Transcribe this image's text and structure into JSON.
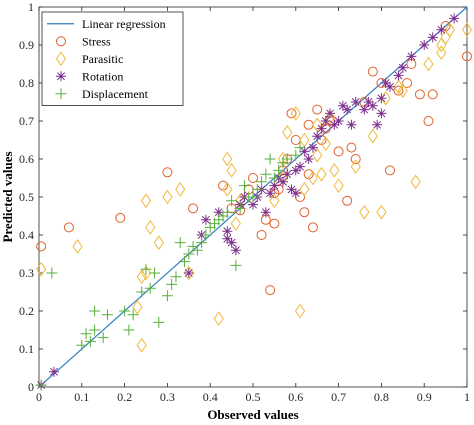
{
  "chart_data": {
    "type": "scatter",
    "xlabel": "Observed values",
    "ylabel": "Predicted values",
    "xlim": [
      0,
      1
    ],
    "ylim": [
      0,
      1
    ],
    "xticks": [
      "0",
      "0.1",
      "0.2",
      "0.3",
      "0.4",
      "0.5",
      "0.6",
      "0.7",
      "0.8",
      "0.9",
      "1"
    ],
    "yticks": [
      "0",
      "0.1",
      "0.2",
      "0.3",
      "0.4",
      "0.5",
      "0.6",
      "0.7",
      "0.8",
      "0.9",
      "1"
    ],
    "grid": false,
    "legend_position": "top-left",
    "line": {
      "name": "Linear regression",
      "color": "#2f7fc1",
      "points": [
        [
          0,
          0
        ],
        [
          1,
          1
        ]
      ]
    },
    "series": [
      {
        "name": "Stress",
        "marker": "circle",
        "color": "#e0602a",
        "points": [
          [
            0.005,
            0.37
          ],
          [
            0.07,
            0.42
          ],
          [
            0.19,
            0.445
          ],
          [
            0.3,
            0.565
          ],
          [
            0.36,
            0.47
          ],
          [
            0.43,
            0.53
          ],
          [
            0.45,
            0.47
          ],
          [
            0.47,
            0.465
          ],
          [
            0.49,
            0.52
          ],
          [
            0.5,
            0.55
          ],
          [
            0.52,
            0.4
          ],
          [
            0.53,
            0.44
          ],
          [
            0.54,
            0.255
          ],
          [
            0.55,
            0.51
          ],
          [
            0.55,
            0.43
          ],
          [
            0.56,
            0.52
          ],
          [
            0.57,
            0.57
          ],
          [
            0.58,
            0.6
          ],
          [
            0.59,
            0.72
          ],
          [
            0.6,
            0.65
          ],
          [
            0.61,
            0.5
          ],
          [
            0.62,
            0.46
          ],
          [
            0.63,
            0.56
          ],
          [
            0.63,
            0.69
          ],
          [
            0.64,
            0.42
          ],
          [
            0.65,
            0.73
          ],
          [
            0.66,
            0.65
          ],
          [
            0.67,
            0.68
          ],
          [
            0.68,
            0.7
          ],
          [
            0.7,
            0.62
          ],
          [
            0.72,
            0.49
          ],
          [
            0.73,
            0.63
          ],
          [
            0.74,
            0.6
          ],
          [
            0.76,
            0.75
          ],
          [
            0.78,
            0.83
          ],
          [
            0.8,
            0.8
          ],
          [
            0.82,
            0.57
          ],
          [
            0.84,
            0.78
          ],
          [
            0.86,
            0.8
          ],
          [
            0.87,
            0.85
          ],
          [
            0.89,
            0.77
          ],
          [
            0.91,
            0.7
          ],
          [
            0.92,
            0.77
          ],
          [
            0.95,
            0.95
          ],
          [
            1.0,
            0.87
          ]
        ]
      },
      {
        "name": "Parasitic",
        "marker": "diamond",
        "color": "#f0b93a",
        "points": [
          [
            0.005,
            0.31
          ],
          [
            0.09,
            0.37
          ],
          [
            0.23,
            0.21
          ],
          [
            0.24,
            0.29
          ],
          [
            0.24,
            0.11
          ],
          [
            0.25,
            0.3
          ],
          [
            0.25,
            0.49
          ],
          [
            0.26,
            0.42
          ],
          [
            0.28,
            0.38
          ],
          [
            0.3,
            0.5
          ],
          [
            0.33,
            0.52
          ],
          [
            0.35,
            0.3
          ],
          [
            0.42,
            0.18
          ],
          [
            0.44,
            0.52
          ],
          [
            0.44,
            0.6
          ],
          [
            0.45,
            0.57
          ],
          [
            0.46,
            0.43
          ],
          [
            0.47,
            0.49
          ],
          [
            0.55,
            0.49
          ],
          [
            0.57,
            0.55
          ],
          [
            0.57,
            0.6
          ],
          [
            0.58,
            0.67
          ],
          [
            0.6,
            0.72
          ],
          [
            0.61,
            0.2
          ],
          [
            0.62,
            0.65
          ],
          [
            0.62,
            0.52
          ],
          [
            0.64,
            0.55
          ],
          [
            0.65,
            0.61
          ],
          [
            0.65,
            0.69
          ],
          [
            0.66,
            0.56
          ],
          [
            0.67,
            0.64
          ],
          [
            0.68,
            0.71
          ],
          [
            0.69,
            0.57
          ],
          [
            0.7,
            0.53
          ],
          [
            0.74,
            0.58
          ],
          [
            0.76,
            0.46
          ],
          [
            0.78,
            0.66
          ],
          [
            0.8,
            0.46
          ],
          [
            0.81,
            0.76
          ],
          [
            0.84,
            0.79
          ],
          [
            0.85,
            0.78
          ],
          [
            0.88,
            0.54
          ],
          [
            0.91,
            0.85
          ],
          [
            0.94,
            0.88
          ],
          [
            0.94,
            0.9
          ],
          [
            0.95,
            0.92
          ],
          [
            0.96,
            0.94
          ],
          [
            1.0,
            0.94
          ]
        ]
      },
      {
        "name": "Rotation",
        "marker": "star",
        "color": "#7e2f8e",
        "points": [
          [
            0.005,
            0.005
          ],
          [
            0.035,
            0.04
          ],
          [
            0.35,
            0.3
          ],
          [
            0.38,
            0.4
          ],
          [
            0.39,
            0.44
          ],
          [
            0.42,
            0.46
          ],
          [
            0.44,
            0.39
          ],
          [
            0.44,
            0.41
          ],
          [
            0.45,
            0.38
          ],
          [
            0.46,
            0.36
          ],
          [
            0.47,
            0.48
          ],
          [
            0.48,
            0.5
          ],
          [
            0.5,
            0.48
          ],
          [
            0.51,
            0.5
          ],
          [
            0.52,
            0.52
          ],
          [
            0.53,
            0.46
          ],
          [
            0.54,
            0.51
          ],
          [
            0.55,
            0.53
          ],
          [
            0.56,
            0.55
          ],
          [
            0.57,
            0.54
          ],
          [
            0.58,
            0.56
          ],
          [
            0.59,
            0.52
          ],
          [
            0.6,
            0.57
          ],
          [
            0.6,
            0.51
          ],
          [
            0.61,
            0.58
          ],
          [
            0.62,
            0.62
          ],
          [
            0.63,
            0.6
          ],
          [
            0.64,
            0.63
          ],
          [
            0.65,
            0.66
          ],
          [
            0.66,
            0.68
          ],
          [
            0.67,
            0.7
          ],
          [
            0.68,
            0.72
          ],
          [
            0.69,
            0.69
          ],
          [
            0.7,
            0.7
          ],
          [
            0.71,
            0.74
          ],
          [
            0.72,
            0.73
          ],
          [
            0.73,
            0.69
          ],
          [
            0.74,
            0.75
          ],
          [
            0.76,
            0.73
          ],
          [
            0.77,
            0.75
          ],
          [
            0.78,
            0.74
          ],
          [
            0.79,
            0.69
          ],
          [
            0.8,
            0.72
          ],
          [
            0.8,
            0.76
          ],
          [
            0.81,
            0.8
          ],
          [
            0.82,
            0.79
          ],
          [
            0.84,
            0.82
          ],
          [
            0.85,
            0.84
          ],
          [
            0.87,
            0.87
          ],
          [
            0.9,
            0.9
          ],
          [
            0.92,
            0.92
          ],
          [
            0.94,
            0.94
          ],
          [
            0.97,
            0.97
          ]
        ]
      },
      {
        "name": "Displacement",
        "marker": "plus",
        "color": "#55b03a",
        "points": [
          [
            0.005,
            0.005
          ],
          [
            0.03,
            0.3
          ],
          [
            0.1,
            0.11
          ],
          [
            0.11,
            0.14
          ],
          [
            0.12,
            0.12
          ],
          [
            0.13,
            0.15
          ],
          [
            0.13,
            0.2
          ],
          [
            0.15,
            0.13
          ],
          [
            0.16,
            0.19
          ],
          [
            0.2,
            0.2
          ],
          [
            0.21,
            0.15
          ],
          [
            0.22,
            0.19
          ],
          [
            0.24,
            0.25
          ],
          [
            0.25,
            0.31
          ],
          [
            0.26,
            0.26
          ],
          [
            0.27,
            0.3
          ],
          [
            0.28,
            0.17
          ],
          [
            0.3,
            0.24
          ],
          [
            0.31,
            0.27
          ],
          [
            0.32,
            0.29
          ],
          [
            0.33,
            0.38
          ],
          [
            0.34,
            0.33
          ],
          [
            0.35,
            0.35
          ],
          [
            0.36,
            0.37
          ],
          [
            0.37,
            0.36
          ],
          [
            0.38,
            0.38
          ],
          [
            0.39,
            0.4
          ],
          [
            0.4,
            0.42
          ],
          [
            0.41,
            0.43
          ],
          [
            0.42,
            0.44
          ],
          [
            0.43,
            0.45
          ],
          [
            0.44,
            0.46
          ],
          [
            0.45,
            0.49
          ],
          [
            0.46,
            0.32
          ],
          [
            0.47,
            0.47
          ],
          [
            0.48,
            0.53
          ],
          [
            0.49,
            0.5
          ],
          [
            0.5,
            0.5
          ],
          [
            0.51,
            0.52
          ],
          [
            0.52,
            0.54
          ],
          [
            0.53,
            0.56
          ],
          [
            0.54,
            0.6
          ],
          [
            0.55,
            0.55
          ],
          [
            0.56,
            0.57
          ],
          [
            0.57,
            0.59
          ],
          [
            0.58,
            0.6
          ],
          [
            0.6,
            0.61
          ],
          [
            0.61,
            0.63
          ]
        ]
      }
    ]
  }
}
